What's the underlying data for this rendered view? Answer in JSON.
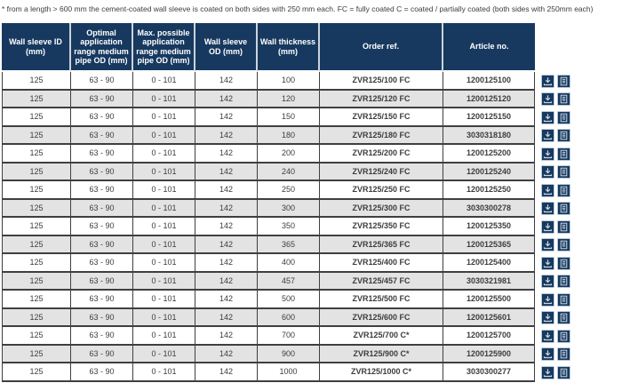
{
  "footnote": "* from a length > 600 mm the cement-coated wall sleeve is coated on both sides with 250 mm each. FC = fully coated C = coated / partially coated (both sides with 250mm each)",
  "table": {
    "columns": [
      "Wall sleeve ID (mm)",
      "Optimal application range medium pipe OD (mm)",
      "Max. possible application range medium pipe OD (mm)",
      "Wall sleeve OD (mm)",
      "Wall thickness (mm)",
      "Order ref.",
      "Article no."
    ],
    "rows": [
      {
        "sleeve_id": "125",
        "optimal": "63 - 90",
        "max": "0 - 101",
        "od": "142",
        "thickness": "100",
        "order_ref": "ZVR125/100 FC",
        "article_no": "1200125100"
      },
      {
        "sleeve_id": "125",
        "optimal": "63 - 90",
        "max": "0 - 101",
        "od": "142",
        "thickness": "120",
        "order_ref": "ZVR125/120 FC",
        "article_no": "1200125120"
      },
      {
        "sleeve_id": "125",
        "optimal": "63 - 90",
        "max": "0 - 101",
        "od": "142",
        "thickness": "150",
        "order_ref": "ZVR125/150 FC",
        "article_no": "1200125150"
      },
      {
        "sleeve_id": "125",
        "optimal": "63 - 90",
        "max": "0 - 101",
        "od": "142",
        "thickness": "180",
        "order_ref": "ZVR125/180 FC",
        "article_no": "3030318180"
      },
      {
        "sleeve_id": "125",
        "optimal": "63 - 90",
        "max": "0 - 101",
        "od": "142",
        "thickness": "200",
        "order_ref": "ZVR125/200 FC",
        "article_no": "1200125200"
      },
      {
        "sleeve_id": "125",
        "optimal": "63 - 90",
        "max": "0 - 101",
        "od": "142",
        "thickness": "240",
        "order_ref": "ZVR125/240 FC",
        "article_no": "1200125240"
      },
      {
        "sleeve_id": "125",
        "optimal": "63 - 90",
        "max": "0 - 101",
        "od": "142",
        "thickness": "250",
        "order_ref": "ZVR125/250 FC",
        "article_no": "1200125250"
      },
      {
        "sleeve_id": "125",
        "optimal": "63 - 90",
        "max": "0 - 101",
        "od": "142",
        "thickness": "300",
        "order_ref": "ZVR125/300 FC",
        "article_no": "3030300278"
      },
      {
        "sleeve_id": "125",
        "optimal": "63 - 90",
        "max": "0 - 101",
        "od": "142",
        "thickness": "350",
        "order_ref": "ZVR125/350 FC",
        "article_no": "1200125350"
      },
      {
        "sleeve_id": "125",
        "optimal": "63 - 90",
        "max": "0 - 101",
        "od": "142",
        "thickness": "365",
        "order_ref": "ZVR125/365 FC",
        "article_no": "1200125365"
      },
      {
        "sleeve_id": "125",
        "optimal": "63 - 90",
        "max": "0 - 101",
        "od": "142",
        "thickness": "400",
        "order_ref": "ZVR125/400 FC",
        "article_no": "1200125400"
      },
      {
        "sleeve_id": "125",
        "optimal": "63 - 90",
        "max": "0 - 101",
        "od": "142",
        "thickness": "457",
        "order_ref": "ZVR125/457 FC",
        "article_no": "3030321981"
      },
      {
        "sleeve_id": "125",
        "optimal": "63 - 90",
        "max": "0 - 101",
        "od": "142",
        "thickness": "500",
        "order_ref": "ZVR125/500 FC",
        "article_no": "1200125500"
      },
      {
        "sleeve_id": "125",
        "optimal": "63 - 90",
        "max": "0 - 101",
        "od": "142",
        "thickness": "600",
        "order_ref": "ZVR125/600 FC",
        "article_no": "1200125601"
      },
      {
        "sleeve_id": "125",
        "optimal": "63 - 90",
        "max": "0 - 101",
        "od": "142",
        "thickness": "700",
        "order_ref": "ZVR125/700 C*",
        "article_no": "1200125700"
      },
      {
        "sleeve_id": "125",
        "optimal": "63 - 90",
        "max": "0 - 101",
        "od": "142",
        "thickness": "900",
        "order_ref": "ZVR125/900 C*",
        "article_no": "1200125900"
      },
      {
        "sleeve_id": "125",
        "optimal": "63 - 90",
        "max": "0 - 101",
        "od": "142",
        "thickness": "1000",
        "order_ref": "ZVR125/1000 C*",
        "article_no": "3030300277"
      }
    ]
  },
  "row_actions": {
    "icons": [
      "download-icon",
      "datasheet-icon"
    ]
  },
  "colors": {
    "header_bg": "#17395f",
    "row_alt": "#e3e3e3",
    "grid": "#3f3f3f",
    "icon_bg": "#17395f",
    "icon_glyph": "#c9d6e2"
  }
}
